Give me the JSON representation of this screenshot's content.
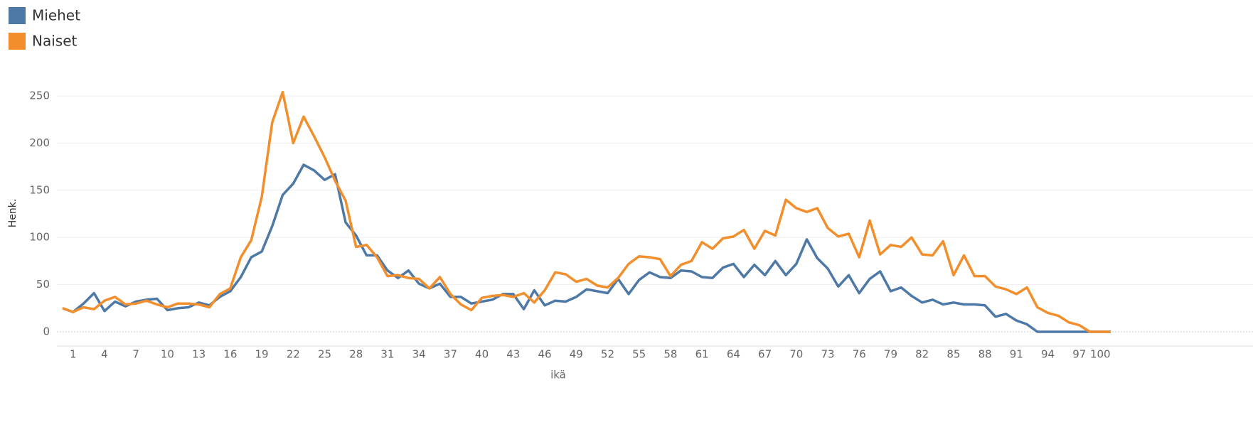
{
  "chart_data": {
    "type": "line",
    "y_label": "Henk.",
    "x_label": "ikä",
    "categories": [
      null,
      1,
      null,
      null,
      4,
      null,
      null,
      7,
      null,
      null,
      10,
      null,
      null,
      13,
      null,
      null,
      16,
      null,
      null,
      19,
      null,
      null,
      22,
      null,
      null,
      25,
      null,
      null,
      28,
      null,
      null,
      31,
      null,
      null,
      34,
      null,
      null,
      37,
      null,
      null,
      40,
      null,
      null,
      43,
      null,
      null,
      46,
      null,
      null,
      49,
      null,
      null,
      52,
      null,
      null,
      55,
      null,
      null,
      58,
      null,
      null,
      61,
      null,
      null,
      64,
      null,
      null,
      67,
      null,
      null,
      70,
      null,
      null,
      73,
      null,
      null,
      76,
      null,
      null,
      79,
      null,
      null,
      82,
      null,
      null,
      85,
      null,
      null,
      88,
      null,
      null,
      91,
      null,
      null,
      94,
      null,
      null,
      97,
      null,
      100,
      null
    ],
    "series": [
      {
        "name": "Miehet",
        "color": "#4e79a7",
        "values": [
          25,
          21,
          30,
          41,
          22,
          32,
          27,
          32,
          34,
          35,
          23,
          25,
          26,
          31,
          28,
          37,
          43,
          58,
          79,
          85,
          112,
          145,
          157,
          177,
          171,
          161,
          167,
          116,
          102,
          81,
          81,
          65,
          57,
          65,
          51,
          46,
          51,
          37,
          37,
          30,
          32,
          34,
          40,
          40,
          24,
          44,
          28,
          33,
          32,
          37,
          45,
          43,
          41,
          56,
          40,
          55,
          63,
          58,
          57,
          65,
          64,
          58,
          57,
          68,
          72,
          58,
          71,
          60,
          75,
          60,
          72,
          98,
          78,
          67,
          48,
          60,
          41,
          56,
          64,
          43,
          47,
          38,
          31,
          34,
          29,
          31,
          29,
          29,
          28,
          16,
          19,
          12,
          8,
          0,
          0,
          0,
          0,
          0,
          0,
          0,
          0
        ]
      },
      {
        "name": "Naiset",
        "color": "#f28e2b",
        "values": [
          25,
          21,
          26,
          24,
          33,
          37,
          29,
          30,
          33,
          29,
          26,
          30,
          30,
          29,
          26,
          40,
          46,
          79,
          97,
          143,
          222,
          254,
          200,
          228,
          207,
          185,
          160,
          139,
          90,
          92,
          79,
          59,
          60,
          57,
          56,
          46,
          58,
          40,
          29,
          23,
          36,
          38,
          39,
          37,
          41,
          31,
          44,
          63,
          61,
          53,
          56,
          49,
          47,
          57,
          72,
          80,
          79,
          77,
          59,
          71,
          75,
          95,
          88,
          99,
          101,
          108,
          88,
          107,
          102,
          140,
          131,
          127,
          131,
          110,
          101,
          104,
          79,
          118,
          82,
          92,
          90,
          100,
          82,
          81,
          96,
          60,
          81,
          59,
          59,
          48,
          45,
          40,
          47,
          26,
          20,
          17,
          10,
          7,
          0,
          0,
          0
        ]
      }
    ],
    "ylim": [
      0,
      270
    ],
    "yticks": [
      0,
      50,
      100,
      150,
      200,
      250
    ],
    "grid": true
  }
}
